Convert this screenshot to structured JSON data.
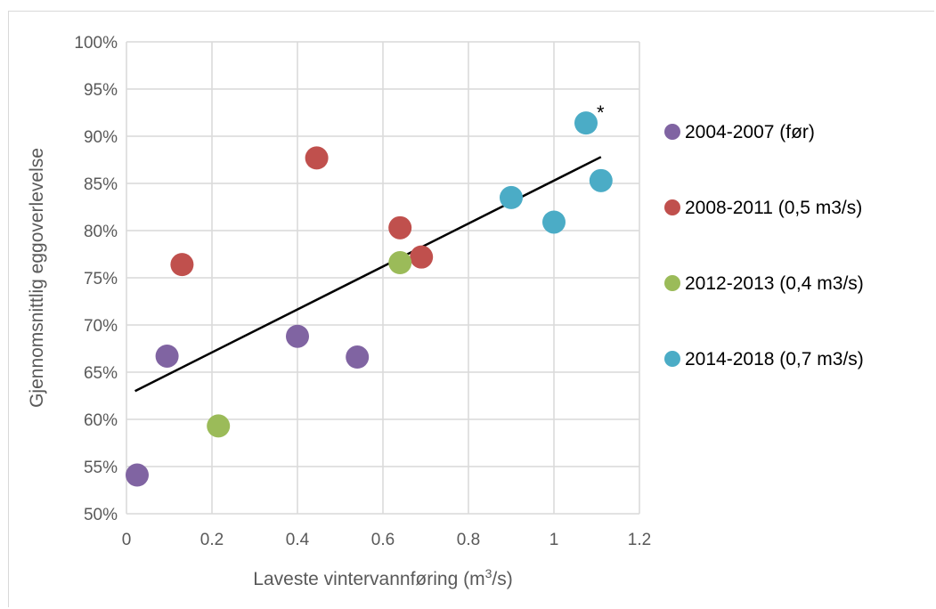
{
  "chart_data": {
    "type": "scatter",
    "xlabel": "Laveste vintervannføring (m",
    "xlabel_sup": "3",
    "xlabel_tail": "/s)",
    "ylabel": "Gjennomsnittlig eggoverlevelse",
    "xlim": [
      0,
      1.2
    ],
    "ylim": [
      0.5,
      1.0
    ],
    "x_ticks": [
      0,
      0.2,
      0.4,
      0.6,
      0.8,
      1,
      1.2
    ],
    "x_tick_labels": [
      "0",
      "0.2",
      "0.4",
      "0.6",
      "0.8",
      "1",
      "1.2"
    ],
    "y_ticks": [
      0.5,
      0.55,
      0.6,
      0.65,
      0.7,
      0.75,
      0.8,
      0.85,
      0.9,
      0.95,
      1.0
    ],
    "y_tick_labels": [
      "50%",
      "55%",
      "60%",
      "65%",
      "70%",
      "75%",
      "80%",
      "85%",
      "90%",
      "95%",
      "100%"
    ],
    "grid": true,
    "legend_position": "right",
    "series": [
      {
        "name": "2004-2007 (før)",
        "color": "#8064a2",
        "points": [
          [
            0.025,
            0.541
          ],
          [
            0.095,
            0.667
          ],
          [
            0.4,
            0.688
          ],
          [
            0.54,
            0.666
          ]
        ]
      },
      {
        "name": "2008-2011 (0,5 m3/s)",
        "color": "#c0504d",
        "points": [
          [
            0.13,
            0.764
          ],
          [
            0.445,
            0.877
          ],
          [
            0.64,
            0.803
          ],
          [
            0.69,
            0.772
          ]
        ]
      },
      {
        "name": "2012-2013 (0,4 m3/s)",
        "color": "#9bbb59",
        "points": [
          [
            0.215,
            0.593
          ],
          [
            0.64,
            0.766
          ]
        ]
      },
      {
        "name": "2014-2018 (0,7 m3/s)",
        "color": "#4bacc6",
        "points": [
          [
            0.9,
            0.835
          ],
          [
            1.0,
            0.809
          ],
          [
            1.075,
            0.914
          ],
          [
            1.11,
            0.853
          ]
        ]
      }
    ],
    "trendline": {
      "color": "#000000",
      "points": [
        [
          0.02,
          0.63
        ],
        [
          1.11,
          0.878
        ]
      ]
    },
    "annotations": [
      {
        "text": "*",
        "x": 1.075,
        "y": 0.914
      }
    ]
  }
}
